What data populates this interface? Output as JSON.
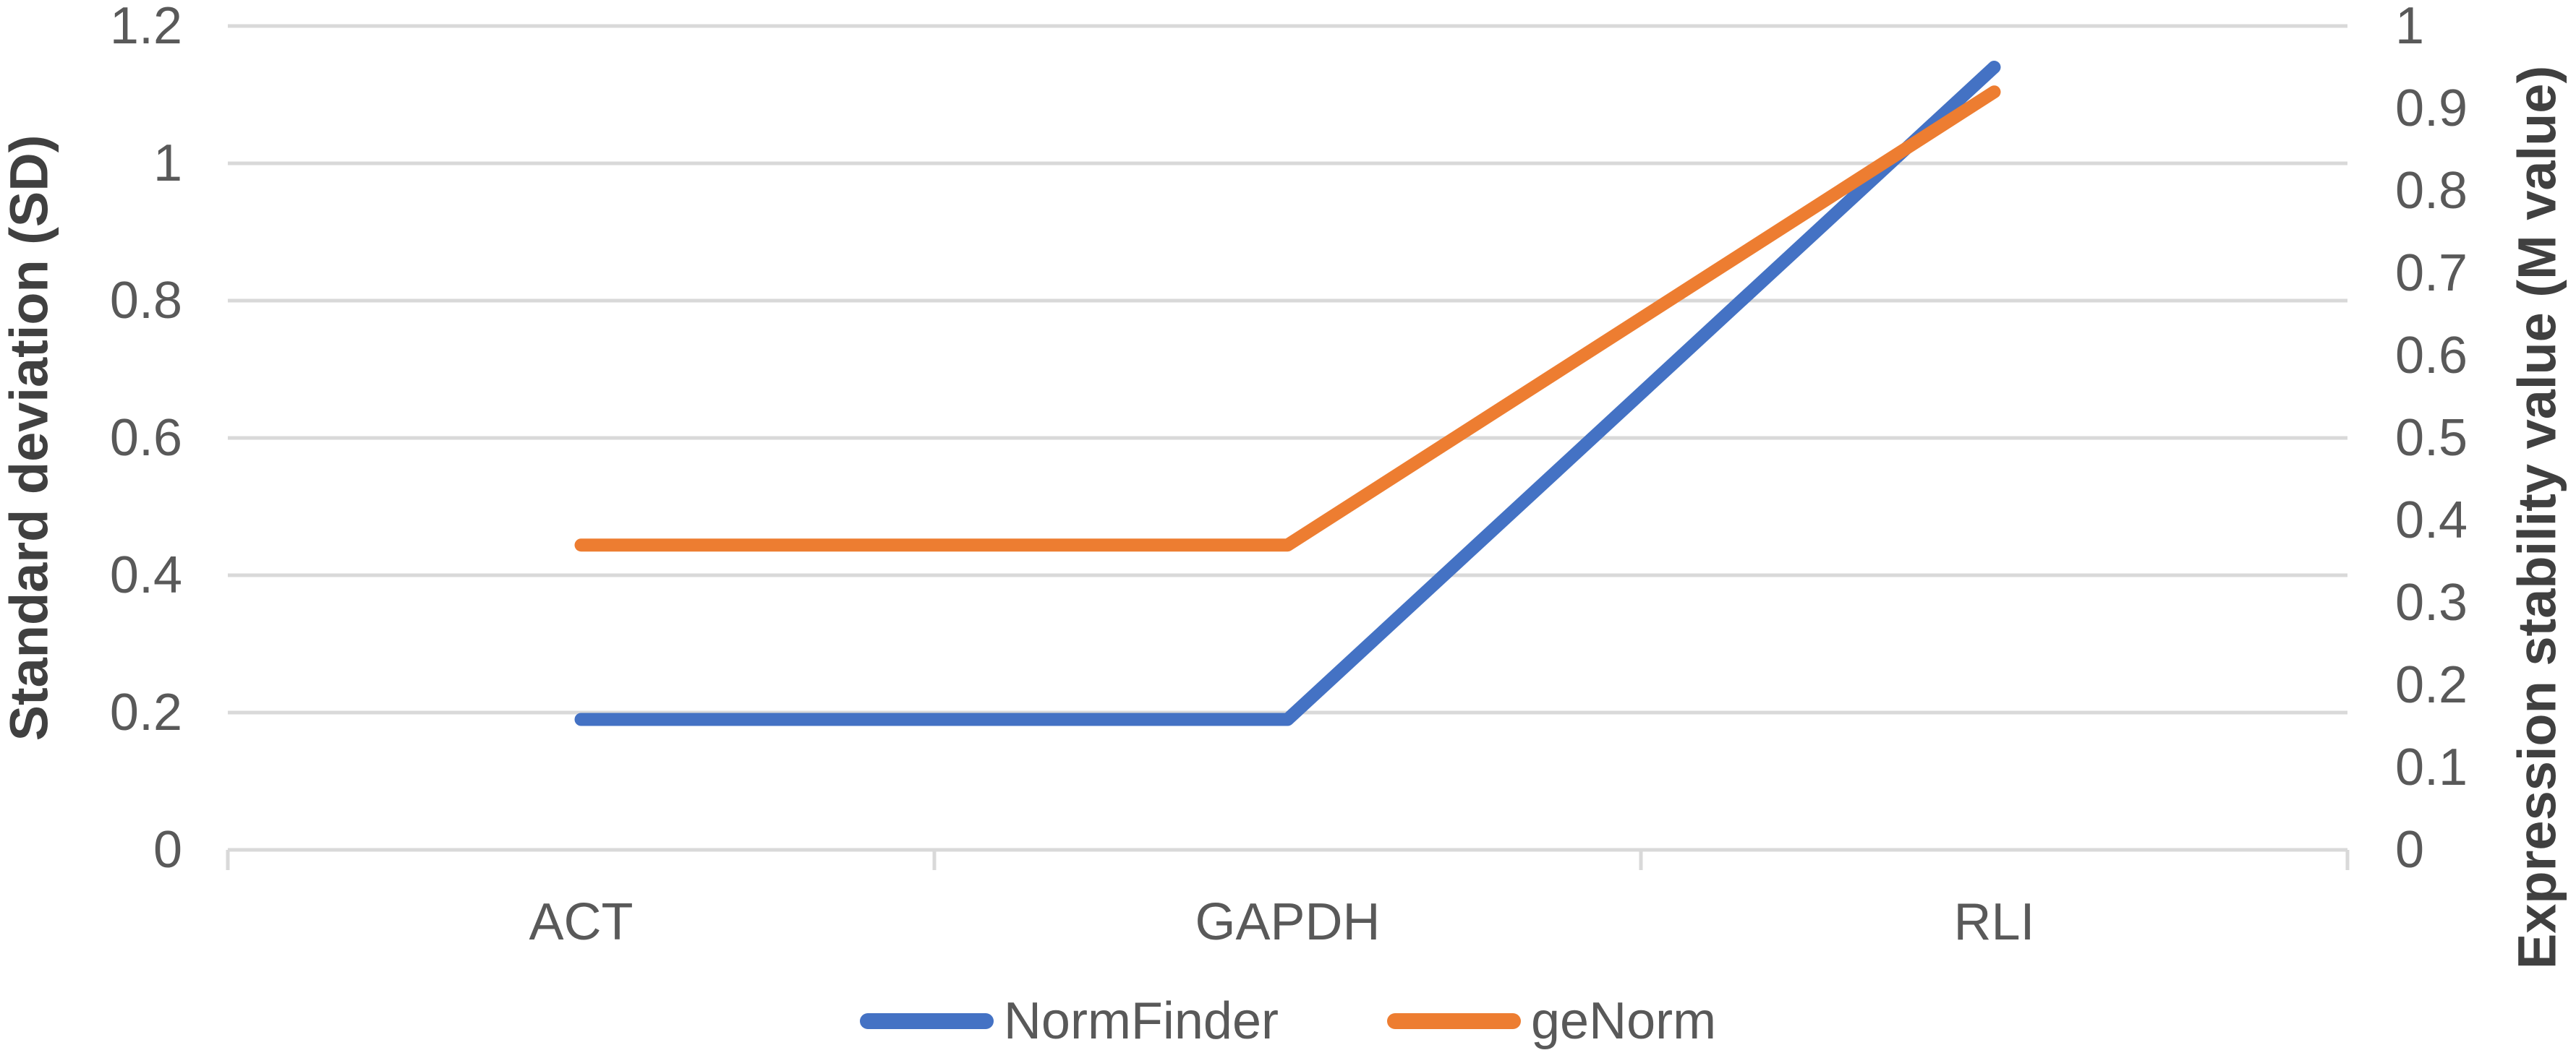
{
  "chart_data": {
    "type": "line",
    "title": "",
    "categories": [
      "ACT",
      "GAPDH",
      "RLI"
    ],
    "series": [
      {
        "name": "NormFinder",
        "axis": "left",
        "color": "#4472C4",
        "values": [
          0.19,
          0.19,
          1.14
        ]
      },
      {
        "name": "geNorm",
        "axis": "right",
        "color": "#ED7D31",
        "values": [
          0.37,
          0.37,
          0.92
        ]
      }
    ],
    "left_axis": {
      "title": "Standard deviation (SD)",
      "min": 0,
      "max": 1.2,
      "step": 0.2,
      "tick_labels": [
        "1.2",
        "1",
        "0.8",
        "0.6",
        "0.4",
        "0.2",
        "0"
      ]
    },
    "right_axis": {
      "title": "Expression stability value (M value)",
      "min": 0,
      "max": 1,
      "step": 0.1,
      "tick_labels": [
        "1",
        "0.9",
        "0.8",
        "0.7",
        "0.6",
        "0.5",
        "0.4",
        "0.3",
        "0.2",
        "0.1",
        "0"
      ]
    },
    "legend": {
      "position": "bottom"
    },
    "grid": {
      "horizontal": true,
      "vertical": false
    },
    "colors": {
      "gridline": "#D9D9D9",
      "axis_line": "#D9D9D9",
      "tick_label": "#595959",
      "axis_title": "#404040",
      "background": "#FFFFFF"
    },
    "line_width": 18
  }
}
